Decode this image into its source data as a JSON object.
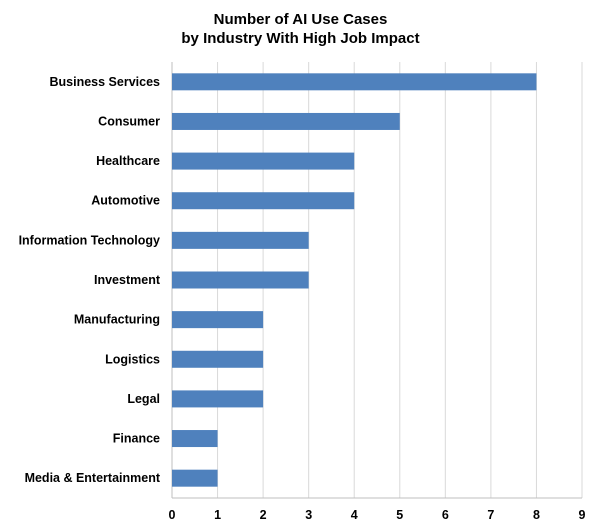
{
  "chart_data": {
    "type": "bar",
    "orientation": "horizontal",
    "title_line1": "Number of AI Use Cases",
    "title_line2": "by Industry With High Job Impact",
    "categories": [
      "Business Services",
      "Consumer",
      "Healthcare",
      "Automotive",
      "Information Technology",
      "Investment",
      "Manufacturing",
      "Logistics",
      "Legal",
      "Finance",
      "Media & Entertainment"
    ],
    "values": [
      8,
      5,
      4,
      4,
      3,
      3,
      2,
      2,
      2,
      1,
      1
    ],
    "xlabel": "",
    "ylabel": "",
    "xlim": [
      0,
      9
    ],
    "xticks": [
      "0",
      "1",
      "2",
      "3",
      "4",
      "5",
      "6",
      "7",
      "8",
      "9"
    ],
    "grid": true,
    "bar_color": "#4f81bd",
    "grid_color": "#d9d9d9"
  }
}
